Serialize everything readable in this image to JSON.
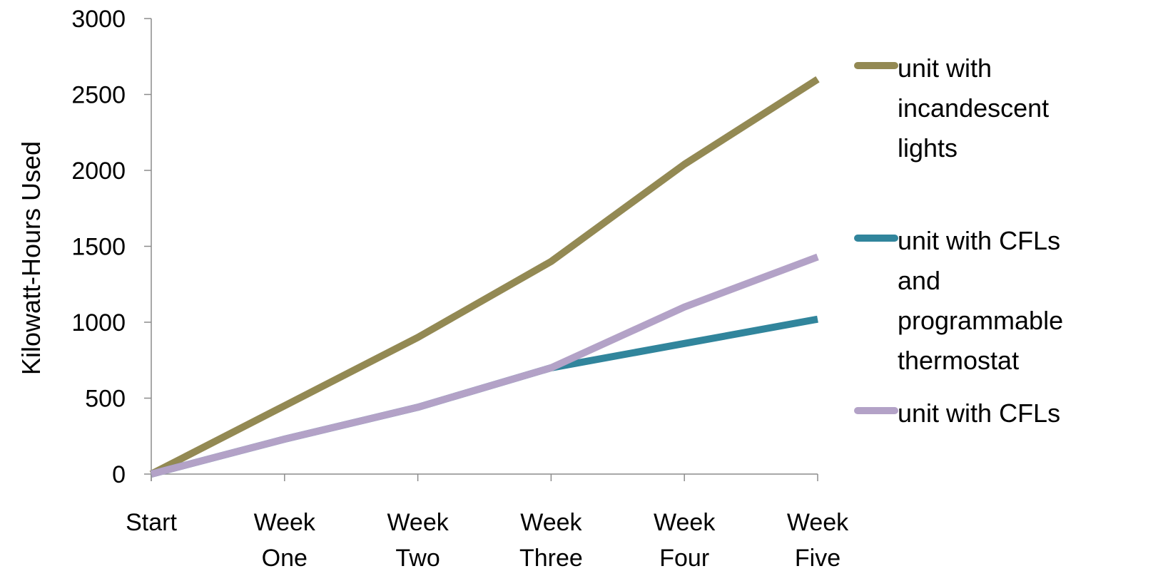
{
  "chart_data": {
    "type": "line",
    "title": "",
    "xlabel": "",
    "ylabel": "Kilowatt-Hours Used",
    "ylim": [
      0,
      3000
    ],
    "yticks": [
      "0",
      "500",
      "1000",
      "1500",
      "2000",
      "2500",
      "3000"
    ],
    "categories": [
      [
        "Start"
      ],
      [
        "Week",
        "One"
      ],
      [
        "Week",
        "Two"
      ],
      [
        "Week",
        "Three"
      ],
      [
        "Week",
        "Four"
      ],
      [
        "Week",
        "Five"
      ]
    ],
    "grid": false,
    "legend_position": "right",
    "series": [
      {
        "name": "unit with incandescent lights",
        "name_lines": [
          "unit with",
          "incandescent",
          "lights"
        ],
        "color": "#938953",
        "values": [
          0,
          450,
          900,
          1400,
          2040,
          2600
        ]
      },
      {
        "name": "unit with CFLs and programmable thermostat",
        "name_lines": [
          "unit with CFLs",
          "and",
          "programmable",
          "thermostat"
        ],
        "color": "#31859c",
        "values": [
          0,
          230,
          440,
          700,
          860,
          1020
        ]
      },
      {
        "name": "unit with CFLs",
        "name_lines": [
          "unit with CFLs"
        ],
        "color": "#b3a2c7",
        "values": [
          0,
          230,
          440,
          700,
          1100,
          1430
        ]
      }
    ]
  }
}
